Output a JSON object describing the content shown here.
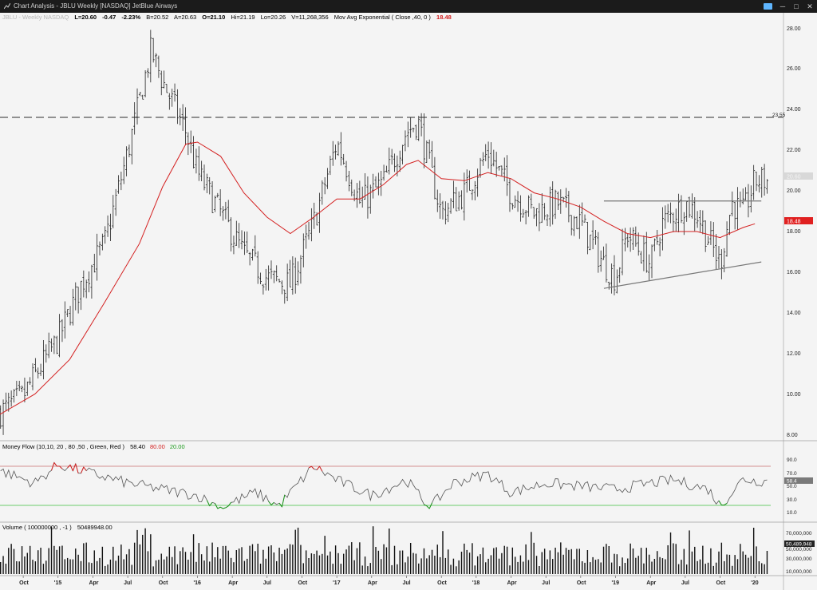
{
  "window": {
    "title": "Chart Analysis - JBLU Weekly [NASDAQ] JetBlue Airways",
    "minimize_glyph": "─",
    "maximize_glyph": "□",
    "close_glyph": "✕"
  },
  "header": {
    "symbol_faded": "JBLU - Weekly  NASDAQ",
    "last": "L=20.60",
    "change": "-0.47",
    "pct": "-2.23%",
    "bid": "B=20.52",
    "ask": "A=20.63",
    "open": "O=21.10",
    "high": "Hi=21.19",
    "low": "Lo=20.26",
    "volume": "V=11,268,356",
    "ma_label": "Mov Avg Exponential ( Close ,40, 0 )",
    "ma_value": "18.48"
  },
  "price_axis": {
    "ticks": [
      "28.00",
      "26.00",
      "24.00",
      "22.00",
      "20.00",
      "18.00",
      "16.00",
      "14.00",
      "12.00",
      "10.00",
      "8.00"
    ],
    "ma_tag": "18.48",
    "last_tag": "20.60",
    "resistance_label": "23.55"
  },
  "money_flow": {
    "label": "Money Flow (10,10,   20 ,   80 ,50 , Green,    Red )",
    "value": "58.40",
    "upper": "80.00",
    "lower": "20.00",
    "ticks": [
      "90.0",
      "70.0",
      "50.0",
      "30.0",
      "10.0"
    ],
    "tag": "58.4"
  },
  "volume_panel": {
    "label": "Volume ( 100000000 , -1 )",
    "value": "50489948.00",
    "ticks": [
      "70,000,000",
      "50,000,000",
      "30,000,000",
      "10,000,000"
    ],
    "tag": "50,489,948"
  },
  "time_axis": {
    "labels": [
      "Oct",
      "'15",
      "Apr",
      "Jul",
      "Oct",
      "'16",
      "Apr",
      "Jul",
      "Oct",
      "'17",
      "Apr",
      "Jul",
      "Oct",
      "'18",
      "Apr",
      "Jul",
      "Oct",
      "'19",
      "Apr",
      "Jul",
      "Oct",
      "'20"
    ]
  },
  "colors": {
    "background": "#f4f4f4",
    "ma": "#d42020",
    "up_text": "#000000",
    "red": "#d42020",
    "green": "#1a9a1a",
    "mf_upper_line": "#c87070",
    "mf_lower_line": "#40c040"
  },
  "chart_data": {
    "type": "ohlc",
    "price_range": [
      7.5,
      28.7
    ],
    "resistance_level": 23.55,
    "ema_40": [
      [
        "2014-08",
        9.1
      ],
      [
        "2014-11",
        10.1
      ],
      [
        "2015-02",
        11.8
      ],
      [
        "2015-05",
        14.6
      ],
      [
        "2015-08",
        17.5
      ],
      [
        "2015-10",
        20.3
      ],
      [
        "2015-12",
        22.4
      ],
      [
        "2016-01",
        22.5
      ],
      [
        "2016-03",
        21.8
      ],
      [
        "2016-05",
        20.0
      ],
      [
        "2016-07",
        18.8
      ],
      [
        "2016-09",
        18.0
      ],
      [
        "2016-11",
        18.8
      ],
      [
        "2017-01",
        19.7
      ],
      [
        "2017-03",
        19.7
      ],
      [
        "2017-05",
        20.4
      ],
      [
        "2017-07",
        21.4
      ],
      [
        "2017-08",
        21.6
      ],
      [
        "2017-10",
        20.7
      ],
      [
        "2017-12",
        20.6
      ],
      [
        "2018-02",
        21.0
      ],
      [
        "2018-04",
        20.7
      ],
      [
        "2018-06",
        20.0
      ],
      [
        "2018-08",
        19.7
      ],
      [
        "2018-10",
        19.3
      ],
      [
        "2018-12",
        18.6
      ],
      [
        "2019-02",
        18.0
      ],
      [
        "2019-04",
        17.8
      ],
      [
        "2019-06",
        18.1
      ],
      [
        "2019-08",
        18.1
      ],
      [
        "2019-10",
        17.8
      ],
      [
        "2019-12",
        18.3
      ],
      [
        "2020-01",
        18.48
      ]
    ],
    "price_path": [
      [
        "2014-08",
        9.2
      ],
      [
        "2014-10",
        10.0
      ],
      [
        "2014-11",
        11.0
      ],
      [
        "2015-01",
        12.8
      ],
      [
        "2015-03",
        15.5
      ],
      [
        "2015-05",
        17.5
      ],
      [
        "2015-07",
        22.0
      ],
      [
        "2015-09",
        27.0
      ],
      [
        "2015-10",
        25.5
      ],
      [
        "2015-12",
        23.0
      ],
      [
        "2016-01",
        21.0
      ],
      [
        "2016-03",
        19.0
      ],
      [
        "2016-05",
        17.0
      ],
      [
        "2016-07",
        15.8
      ],
      [
        "2016-09",
        15.5
      ],
      [
        "2016-11",
        18.5
      ],
      [
        "2017-01",
        22.5
      ],
      [
        "2017-03",
        19.5
      ],
      [
        "2017-05",
        20.5
      ],
      [
        "2017-07",
        23.0
      ],
      [
        "2017-08",
        23.5
      ],
      [
        "2017-10",
        19.0
      ],
      [
        "2017-12",
        20.0
      ],
      [
        "2018-02",
        22.0
      ],
      [
        "2018-04",
        20.0
      ],
      [
        "2018-06",
        19.0
      ],
      [
        "2018-08",
        19.5
      ],
      [
        "2018-10",
        18.5
      ],
      [
        "2018-12",
        16.5
      ],
      [
        "2019-01",
        15.8
      ],
      [
        "2019-02",
        18.0
      ],
      [
        "2019-04",
        16.5
      ],
      [
        "2019-05",
        18.5
      ],
      [
        "2019-07",
        19.5
      ],
      [
        "2019-08",
        19.0
      ],
      [
        "2019-10",
        16.5
      ],
      [
        "2019-11",
        19.5
      ],
      [
        "2019-12",
        19.0
      ],
      [
        "2020-01",
        20.6
      ]
    ],
    "triangle": {
      "upper": [
        [
          "2018-12",
          19.6
        ],
        [
          "2020-01",
          19.6
        ]
      ],
      "lower": [
        [
          "2018-12",
          15.3
        ],
        [
          "2020-01",
          16.6
        ]
      ]
    },
    "money_flow_path": [
      [
        "2014-08",
        75
      ],
      [
        "2014-11",
        55
      ],
      [
        "2015-01",
        85
      ],
      [
        "2015-04",
        70
      ],
      [
        "2015-07",
        55
      ],
      [
        "2015-10",
        45
      ],
      [
        "2016-01",
        35
      ],
      [
        "2016-03",
        15
      ],
      [
        "2016-06",
        40
      ],
      [
        "2016-08",
        18
      ],
      [
        "2016-11",
        82
      ],
      [
        "2017-01",
        60
      ],
      [
        "2017-04",
        35
      ],
      [
        "2017-07",
        60
      ],
      [
        "2017-09",
        15
      ],
      [
        "2017-11",
        55
      ],
      [
        "2018-02",
        70
      ],
      [
        "2018-04",
        40
      ],
      [
        "2018-07",
        55
      ],
      [
        "2018-10",
        50
      ],
      [
        "2019-01",
        45
      ],
      [
        "2019-04",
        55
      ],
      [
        "2019-06",
        60
      ],
      [
        "2019-09",
        45
      ],
      [
        "2019-10",
        18
      ],
      [
        "2019-12",
        62
      ],
      [
        "2020-01",
        58.4
      ]
    ]
  }
}
